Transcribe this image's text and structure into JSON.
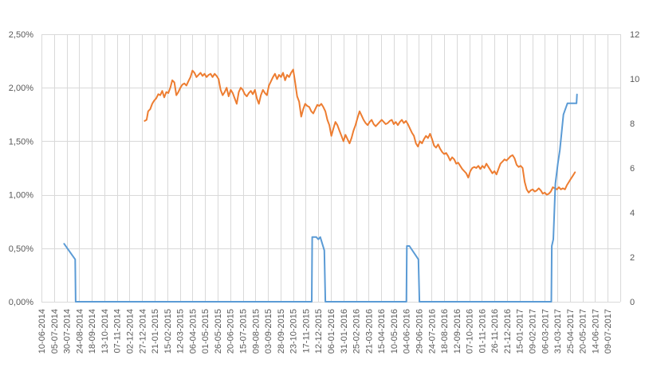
{
  "chart_data": {
    "type": "line",
    "title": "",
    "xlabel": "",
    "ylabel": "",
    "grid": true,
    "legend": "none",
    "x_tick_labels": [
      "10-06-2014",
      "05-07-2014",
      "30-07-2014",
      "24-08-2014",
      "18-09-2014",
      "13-10-2014",
      "07-11-2014",
      "02-12-2014",
      "27-12-2014",
      "21-01-2015",
      "15-02-2015",
      "12-03-2015",
      "06-04-2015",
      "01-05-2015",
      "26-05-2015",
      "20-06-2015",
      "15-07-2015",
      "09-08-2015",
      "03-09-2015",
      "28-09-2015",
      "23-10-2015",
      "17-11-2015",
      "12-12-2015",
      "06-01-2016",
      "31-01-2016",
      "25-02-2016",
      "21-03-2016",
      "15-04-2016",
      "10-05-2016",
      "04-06-2016",
      "29-06-2016",
      "24-07-2016",
      "18-08-2016",
      "12-09-2016",
      "07-10-2016",
      "01-11-2016",
      "26-11-2016",
      "21-12-2016",
      "15-01-2017",
      "09-02-2017",
      "06-03-2017",
      "31-03-2017",
      "25-04-2017",
      "20-05-2017",
      "14-06-2017",
      "09-07-2017"
    ],
    "y_left": {
      "ylim": [
        0,
        2.5
      ],
      "ticks": [
        "0,00%",
        "0,50%",
        "1,00%",
        "1,50%",
        "2,00%",
        "2,50%"
      ]
    },
    "y_right": {
      "ylim": [
        0,
        12
      ],
      "ticks": [
        "0",
        "2",
        "4",
        "6",
        "8",
        "10",
        "12"
      ]
    },
    "series": [
      {
        "axis": "left",
        "color": "#ED7D31",
        "points": [
          [
            "2015-01-01",
            1.69
          ],
          [
            "2015-01-05",
            1.7
          ],
          [
            "2015-01-08",
            1.78
          ],
          [
            "2015-01-12",
            1.8
          ],
          [
            "2015-01-16",
            1.85
          ],
          [
            "2015-01-20",
            1.88
          ],
          [
            "2015-01-24",
            1.9
          ],
          [
            "2015-01-28",
            1.94
          ],
          [
            "2015-02-01",
            1.93
          ],
          [
            "2015-02-05",
            1.97
          ],
          [
            "2015-02-09",
            1.91
          ],
          [
            "2015-02-13",
            1.96
          ],
          [
            "2015-02-17",
            1.95
          ],
          [
            "2015-02-21",
            2.0
          ],
          [
            "2015-02-25",
            2.07
          ],
          [
            "2015-03-01",
            2.05
          ],
          [
            "2015-03-05",
            1.93
          ],
          [
            "2015-03-09",
            1.96
          ],
          [
            "2015-03-13",
            2.0
          ],
          [
            "2015-03-17",
            2.03
          ],
          [
            "2015-03-21",
            2.04
          ],
          [
            "2015-03-25",
            2.02
          ],
          [
            "2015-03-29",
            2.06
          ],
          [
            "2015-04-02",
            2.1
          ],
          [
            "2015-04-06",
            2.16
          ],
          [
            "2015-04-10",
            2.14
          ],
          [
            "2015-04-14",
            2.1
          ],
          [
            "2015-04-18",
            2.12
          ],
          [
            "2015-04-22",
            2.14
          ],
          [
            "2015-04-26",
            2.11
          ],
          [
            "2015-04-30",
            2.13
          ],
          [
            "2015-05-04",
            2.1
          ],
          [
            "2015-05-08",
            2.12
          ],
          [
            "2015-05-12",
            2.13
          ],
          [
            "2015-05-16",
            2.1
          ],
          [
            "2015-05-20",
            2.13
          ],
          [
            "2015-05-24",
            2.11
          ],
          [
            "2015-05-28",
            2.08
          ],
          [
            "2015-06-01",
            1.98
          ],
          [
            "2015-06-05",
            1.93
          ],
          [
            "2015-06-09",
            1.96
          ],
          [
            "2015-06-13",
            2.0
          ],
          [
            "2015-06-17",
            1.92
          ],
          [
            "2015-06-21",
            1.98
          ],
          [
            "2015-06-25",
            1.95
          ],
          [
            "2015-06-29",
            1.9
          ],
          [
            "2015-07-03",
            1.85
          ],
          [
            "2015-07-07",
            1.96
          ],
          [
            "2015-07-11",
            2.0
          ],
          [
            "2015-07-15",
            1.98
          ],
          [
            "2015-07-19",
            1.94
          ],
          [
            "2015-07-23",
            1.92
          ],
          [
            "2015-07-27",
            1.95
          ],
          [
            "2015-07-31",
            1.97
          ],
          [
            "2015-08-04",
            1.94
          ],
          [
            "2015-08-08",
            1.98
          ],
          [
            "2015-08-12",
            1.9
          ],
          [
            "2015-08-16",
            1.85
          ],
          [
            "2015-08-20",
            1.93
          ],
          [
            "2015-08-24",
            1.98
          ],
          [
            "2015-08-28",
            1.95
          ],
          [
            "2015-09-01",
            1.93
          ],
          [
            "2015-09-05",
            2.02
          ],
          [
            "2015-09-09",
            2.06
          ],
          [
            "2015-09-13",
            2.1
          ],
          [
            "2015-09-17",
            2.13
          ],
          [
            "2015-09-21",
            2.08
          ],
          [
            "2015-09-25",
            2.12
          ],
          [
            "2015-09-29",
            2.1
          ],
          [
            "2015-10-03",
            2.14
          ],
          [
            "2015-10-07",
            2.07
          ],
          [
            "2015-10-11",
            2.12
          ],
          [
            "2015-10-15",
            2.1
          ],
          [
            "2015-10-19",
            2.14
          ],
          [
            "2015-10-23",
            2.17
          ],
          [
            "2015-10-27",
            2.05
          ],
          [
            "2015-10-31",
            1.92
          ],
          [
            "2015-11-04",
            1.87
          ],
          [
            "2015-11-08",
            1.73
          ],
          [
            "2015-11-12",
            1.8
          ],
          [
            "2015-11-16",
            1.85
          ],
          [
            "2015-11-20",
            1.83
          ],
          [
            "2015-11-24",
            1.82
          ],
          [
            "2015-11-28",
            1.78
          ],
          [
            "2015-12-02",
            1.76
          ],
          [
            "2015-12-06",
            1.8
          ],
          [
            "2015-12-10",
            1.84
          ],
          [
            "2015-12-14",
            1.83
          ],
          [
            "2015-12-18",
            1.85
          ],
          [
            "2015-12-22",
            1.82
          ],
          [
            "2015-12-26",
            1.78
          ],
          [
            "2015-12-30",
            1.7
          ],
          [
            "2016-01-03",
            1.65
          ],
          [
            "2016-01-07",
            1.55
          ],
          [
            "2016-01-11",
            1.62
          ],
          [
            "2016-01-15",
            1.68
          ],
          [
            "2016-01-19",
            1.65
          ],
          [
            "2016-01-23",
            1.6
          ],
          [
            "2016-01-27",
            1.55
          ],
          [
            "2016-01-31",
            1.5
          ],
          [
            "2016-02-04",
            1.56
          ],
          [
            "2016-02-08",
            1.52
          ],
          [
            "2016-02-12",
            1.48
          ],
          [
            "2016-02-16",
            1.53
          ],
          [
            "2016-02-20",
            1.6
          ],
          [
            "2016-02-24",
            1.65
          ],
          [
            "2016-02-28",
            1.72
          ],
          [
            "2016-03-03",
            1.78
          ],
          [
            "2016-03-07",
            1.74
          ],
          [
            "2016-03-11",
            1.7
          ],
          [
            "2016-03-15",
            1.67
          ],
          [
            "2016-03-19",
            1.65
          ],
          [
            "2016-03-23",
            1.68
          ],
          [
            "2016-03-27",
            1.7
          ],
          [
            "2016-03-31",
            1.66
          ],
          [
            "2016-04-04",
            1.64
          ],
          [
            "2016-04-08",
            1.66
          ],
          [
            "2016-04-12",
            1.68
          ],
          [
            "2016-04-16",
            1.7
          ],
          [
            "2016-04-20",
            1.68
          ],
          [
            "2016-04-24",
            1.66
          ],
          [
            "2016-04-28",
            1.67
          ],
          [
            "2016-05-02",
            1.69
          ],
          [
            "2016-05-06",
            1.7
          ],
          [
            "2016-05-10",
            1.66
          ],
          [
            "2016-05-14",
            1.68
          ],
          [
            "2016-05-18",
            1.65
          ],
          [
            "2016-05-22",
            1.68
          ],
          [
            "2016-05-26",
            1.7
          ],
          [
            "2016-05-30",
            1.67
          ],
          [
            "2016-06-03",
            1.69
          ],
          [
            "2016-06-07",
            1.66
          ],
          [
            "2016-06-11",
            1.62
          ],
          [
            "2016-06-15",
            1.58
          ],
          [
            "2016-06-19",
            1.55
          ],
          [
            "2016-06-23",
            1.48
          ],
          [
            "2016-06-27",
            1.45
          ],
          [
            "2016-07-01",
            1.5
          ],
          [
            "2016-07-05",
            1.48
          ],
          [
            "2016-07-09",
            1.52
          ],
          [
            "2016-07-13",
            1.55
          ],
          [
            "2016-07-17",
            1.53
          ],
          [
            "2016-07-21",
            1.57
          ],
          [
            "2016-07-25",
            1.52
          ],
          [
            "2016-07-29",
            1.46
          ],
          [
            "2016-08-02",
            1.44
          ],
          [
            "2016-08-06",
            1.47
          ],
          [
            "2016-08-10",
            1.43
          ],
          [
            "2016-08-14",
            1.4
          ],
          [
            "2016-08-18",
            1.38
          ],
          [
            "2016-08-22",
            1.39
          ],
          [
            "2016-08-26",
            1.36
          ],
          [
            "2016-08-30",
            1.32
          ],
          [
            "2016-09-03",
            1.35
          ],
          [
            "2016-09-07",
            1.33
          ],
          [
            "2016-09-11",
            1.29
          ],
          [
            "2016-09-15",
            1.3
          ],
          [
            "2016-09-19",
            1.27
          ],
          [
            "2016-09-23",
            1.24
          ],
          [
            "2016-09-27",
            1.22
          ],
          [
            "2016-10-01",
            1.2
          ],
          [
            "2016-10-05",
            1.16
          ],
          [
            "2016-10-09",
            1.22
          ],
          [
            "2016-10-13",
            1.25
          ],
          [
            "2016-10-17",
            1.26
          ],
          [
            "2016-10-21",
            1.25
          ],
          [
            "2016-10-25",
            1.27
          ],
          [
            "2016-10-29",
            1.24
          ],
          [
            "2016-11-02",
            1.27
          ],
          [
            "2016-11-06",
            1.25
          ],
          [
            "2016-11-10",
            1.29
          ],
          [
            "2016-11-14",
            1.26
          ],
          [
            "2016-11-18",
            1.23
          ],
          [
            "2016-11-22",
            1.2
          ],
          [
            "2016-11-26",
            1.22
          ],
          [
            "2016-11-30",
            1.19
          ],
          [
            "2016-12-04",
            1.24
          ],
          [
            "2016-12-08",
            1.29
          ],
          [
            "2016-12-12",
            1.31
          ],
          [
            "2016-12-16",
            1.33
          ],
          [
            "2016-12-20",
            1.32
          ],
          [
            "2016-12-24",
            1.34
          ],
          [
            "2016-12-28",
            1.36
          ],
          [
            "2017-01-01",
            1.37
          ],
          [
            "2017-01-05",
            1.34
          ],
          [
            "2017-01-09",
            1.28
          ],
          [
            "2017-01-13",
            1.26
          ],
          [
            "2017-01-17",
            1.27
          ],
          [
            "2017-01-21",
            1.25
          ],
          [
            "2017-01-25",
            1.12
          ],
          [
            "2017-01-29",
            1.05
          ],
          [
            "2017-02-02",
            1.02
          ],
          [
            "2017-02-06",
            1.04
          ],
          [
            "2017-02-10",
            1.05
          ],
          [
            "2017-02-14",
            1.03
          ],
          [
            "2017-02-18",
            1.04
          ],
          [
            "2017-02-22",
            1.06
          ],
          [
            "2017-02-26",
            1.04
          ],
          [
            "2017-03-02",
            1.01
          ],
          [
            "2017-03-06",
            1.02
          ],
          [
            "2017-03-10",
            1.0
          ],
          [
            "2017-03-14",
            1.01
          ],
          [
            "2017-03-18",
            1.03
          ],
          [
            "2017-03-22",
            1.07
          ],
          [
            "2017-03-26",
            1.06
          ],
          [
            "2017-03-30",
            1.05
          ],
          [
            "2017-04-03",
            1.07
          ],
          [
            "2017-04-07",
            1.05
          ],
          [
            "2017-04-11",
            1.06
          ],
          [
            "2017-04-15",
            1.05
          ],
          [
            "2017-04-19",
            1.09
          ],
          [
            "2017-04-23",
            1.12
          ],
          [
            "2017-04-27",
            1.15
          ],
          [
            "2017-05-01",
            1.18
          ],
          [
            "2017-05-05",
            1.21
          ]
        ]
      },
      {
        "axis": "right",
        "color": "#5B9BD5",
        "points": [
          [
            "2014-07-25",
            2.6
          ],
          [
            "2014-08-16",
            1.9
          ],
          [
            "2014-08-17",
            0
          ],
          [
            "2015-11-29",
            0
          ],
          [
            "2015-11-30",
            2.9
          ],
          [
            "2015-12-08",
            2.9
          ],
          [
            "2015-12-12",
            2.8
          ],
          [
            "2015-12-16",
            2.9
          ],
          [
            "2015-12-24",
            2.3
          ],
          [
            "2015-12-26",
            0
          ],
          [
            "2016-06-04",
            0
          ],
          [
            "2016-06-05",
            2.5
          ],
          [
            "2016-06-10",
            2.5
          ],
          [
            "2016-06-28",
            1.9
          ],
          [
            "2016-06-30",
            0
          ],
          [
            "2017-03-19",
            0
          ],
          [
            "2017-03-20",
            2.5
          ],
          [
            "2017-03-23",
            2.8
          ],
          [
            "2017-03-27",
            5.3
          ],
          [
            "2017-04-01",
            6.2
          ],
          [
            "2017-04-05",
            6.8
          ],
          [
            "2017-04-12",
            8.4
          ],
          [
            "2017-04-20",
            8.9
          ],
          [
            "2017-05-08",
            8.9
          ],
          [
            "2017-05-09",
            9.3
          ]
        ]
      }
    ]
  }
}
